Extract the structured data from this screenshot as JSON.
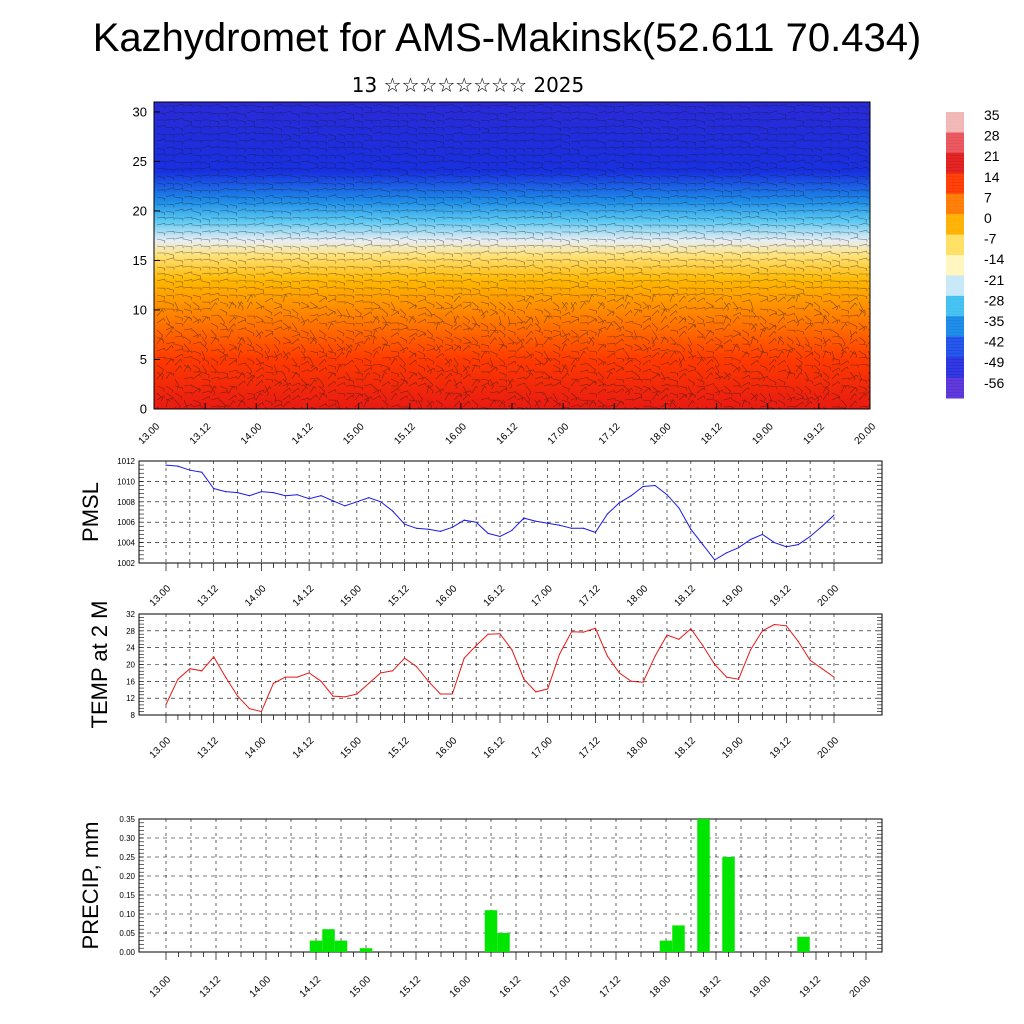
{
  "header": {
    "title": "Kazhydromet for AMS-Makinsk(52.611 70.434)",
    "subtitle": "13 ☆☆☆☆☆☆☆☆ 2025"
  },
  "time_ticks": [
    "13.00",
    "13.12",
    "14.00",
    "14.12",
    "15.00",
    "15.12",
    "16.00",
    "16.12",
    "17.00",
    "17.12",
    "18.00",
    "18.12",
    "19.00",
    "19.12",
    "20.00"
  ],
  "colorbar": {
    "labels": [
      "35",
      "28",
      "21",
      "14",
      "7",
      "0",
      "-7",
      "-14",
      "-21",
      "-28",
      "-35",
      "-42",
      "-49",
      "-56"
    ],
    "colors_top_to_bottom": [
      "#f2b6b6",
      "#e8525a",
      "#e01c1c",
      "#ff3a00",
      "#ff7a00",
      "#ffb000",
      "#ffe060",
      "#fff6c0",
      "#c8e8f8",
      "#40c0f0",
      "#1888e8",
      "#1e50e8",
      "#2830e0",
      "#5a32d8"
    ]
  },
  "chart_data": [
    {
      "type": "heatmap",
      "description_units": "temperature field with wind barbs",
      "y_ticks": [
        "0",
        "5",
        "10",
        "15",
        "20",
        "25",
        "30"
      ],
      "ylim": [
        0,
        31
      ],
      "colors_by_height": [
        {
          "level": 0,
          "color": "#e81a12"
        },
        {
          "level": 5,
          "color": "#ff3a00"
        },
        {
          "level": 9,
          "color": "#ff7a00"
        },
        {
          "level": 13,
          "color": "#ffb800"
        },
        {
          "level": 15.5,
          "color": "#ffe27a"
        },
        {
          "level": 17,
          "color": "#e8eef4"
        },
        {
          "level": 19,
          "color": "#5ac8f2"
        },
        {
          "level": 21,
          "color": "#1e8ce8"
        },
        {
          "level": 24,
          "color": "#1830e0"
        },
        {
          "level": 31,
          "color": "#2a2ad8"
        }
      ]
    },
    {
      "type": "line",
      "ylabel": "PMSL",
      "y_ticks": [
        "1002",
        "1004",
        "1006",
        "1008",
        "1010",
        "1012"
      ],
      "ylim": [
        1002,
        1012
      ],
      "color": "#1a1ae6",
      "x": [
        0,
        3,
        6,
        9,
        12,
        15,
        18,
        21,
        24,
        27,
        30,
        33,
        36,
        39,
        42,
        45,
        48,
        51,
        54,
        57,
        60,
        63,
        66,
        69,
        72,
        75,
        78,
        81,
        84,
        87,
        90,
        93,
        96,
        99,
        102,
        105,
        108,
        111,
        114,
        117,
        120,
        123,
        126,
        129,
        132,
        135,
        138,
        141,
        144,
        147,
        150,
        153,
        156,
        159,
        162,
        165,
        168
      ],
      "values": [
        1011.6,
        1011.5,
        1011.1,
        1010.9,
        1009.3,
        1009.0,
        1008.9,
        1008.6,
        1009.0,
        1008.9,
        1008.6,
        1008.7,
        1008.3,
        1008.6,
        1008.1,
        1007.6,
        1008.0,
        1008.4,
        1008.0,
        1007.1,
        1005.8,
        1005.4,
        1005.3,
        1005.1,
        1005.5,
        1006.2,
        1006.0,
        1004.9,
        1004.6,
        1005.2,
        1006.4,
        1006.1,
        1005.9,
        1005.7,
        1005.4,
        1005.4,
        1005.0,
        1006.8,
        1007.9,
        1008.6,
        1009.5,
        1009.6,
        1008.7,
        1007.4,
        1005.3,
        1003.8,
        1002.3,
        1003.0,
        1003.5,
        1004.3,
        1004.8,
        1004.0,
        1003.6,
        1003.8,
        1004.6,
        1005.6,
        1006.7
      ]
    },
    {
      "type": "line",
      "ylabel": "TEMP at 2 M",
      "y_ticks": [
        "8",
        "12",
        "16",
        "20",
        "24",
        "28",
        "32"
      ],
      "ylim": [
        8,
        32
      ],
      "color": "#e61a1a",
      "x": [
        0,
        3,
        6,
        9,
        12,
        15,
        18,
        21,
        24,
        27,
        30,
        33,
        36,
        39,
        42,
        45,
        48,
        51,
        54,
        57,
        60,
        63,
        66,
        69,
        72,
        75,
        78,
        81,
        84,
        87,
        90,
        93,
        96,
        99,
        102,
        105,
        108,
        111,
        114,
        117,
        120,
        123,
        126,
        129,
        132,
        135,
        138,
        141,
        144,
        147,
        150,
        153,
        156,
        159,
        162,
        165,
        168
      ],
      "values": [
        10.5,
        16.5,
        19.0,
        18.5,
        21.8,
        17.0,
        12.5,
        9.5,
        8.8,
        15.5,
        17.0,
        17.0,
        18.0,
        16.0,
        12.5,
        12.3,
        13.0,
        15.5,
        18.0,
        18.5,
        21.5,
        19.5,
        16.0,
        13.0,
        13.0,
        21.5,
        24.5,
        27.2,
        27.3,
        23.5,
        16.5,
        13.5,
        14.2,
        22.5,
        27.8,
        27.7,
        28.6,
        22.0,
        18.0,
        16.0,
        15.8,
        22.0,
        27.0,
        26.0,
        28.5,
        24.5,
        20.0,
        17.0,
        16.5,
        23.5,
        28.0,
        29.5,
        29.2,
        25.5,
        21.0,
        19.0,
        17.0
      ]
    },
    {
      "type": "bar",
      "ylabel": "PRECIP, mm",
      "y_ticks": [
        "0.00",
        "0.05",
        "0.10",
        "0.15",
        "0.20",
        "0.25",
        "0.30",
        "0.35"
      ],
      "ylim": [
        0,
        0.35
      ],
      "color": "#00e600",
      "x": [
        36,
        39,
        42,
        48,
        78,
        81,
        120,
        123,
        129,
        135,
        153
      ],
      "values": [
        0.03,
        0.06,
        0.03,
        0.01,
        0.11,
        0.05,
        0.03,
        0.07,
        0.35,
        0.25,
        0.04
      ]
    }
  ]
}
